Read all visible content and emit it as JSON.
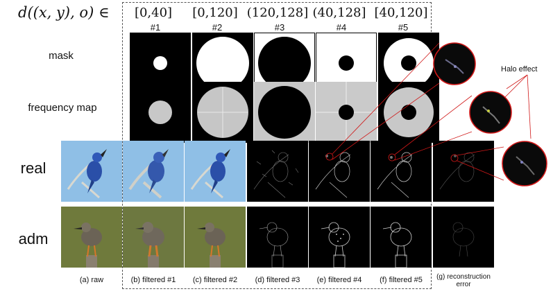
{
  "header": {
    "formula": "d((x, y), o) ∈",
    "columns": [
      {
        "range": "[0,40]",
        "num": "#1"
      },
      {
        "range": "[0,120]",
        "num": "#2"
      },
      {
        "range": "(120,128]",
        "num": "#3"
      },
      {
        "range": "(40,128]",
        "num": "#4"
      },
      {
        "range": "[40,120]",
        "num": "#5"
      }
    ]
  },
  "rows": {
    "mask": "mask",
    "frequency_map": "frequency map",
    "real": "real",
    "adm": "adm"
  },
  "annotation": {
    "halo": "Halo effect"
  },
  "captions": [
    "(a) raw",
    "(b) filtered #1",
    "(c) filtered #2",
    "(d) filtered #3",
    "(e) filtered #4",
    "(f) filtered #5",
    "(g) reconstruction error"
  ],
  "colors": {
    "sky": "#8fbfe6",
    "bird_blue": "#2a4fa8",
    "olive_bg": "#6f7a3c",
    "halo_red": "#d01818"
  }
}
